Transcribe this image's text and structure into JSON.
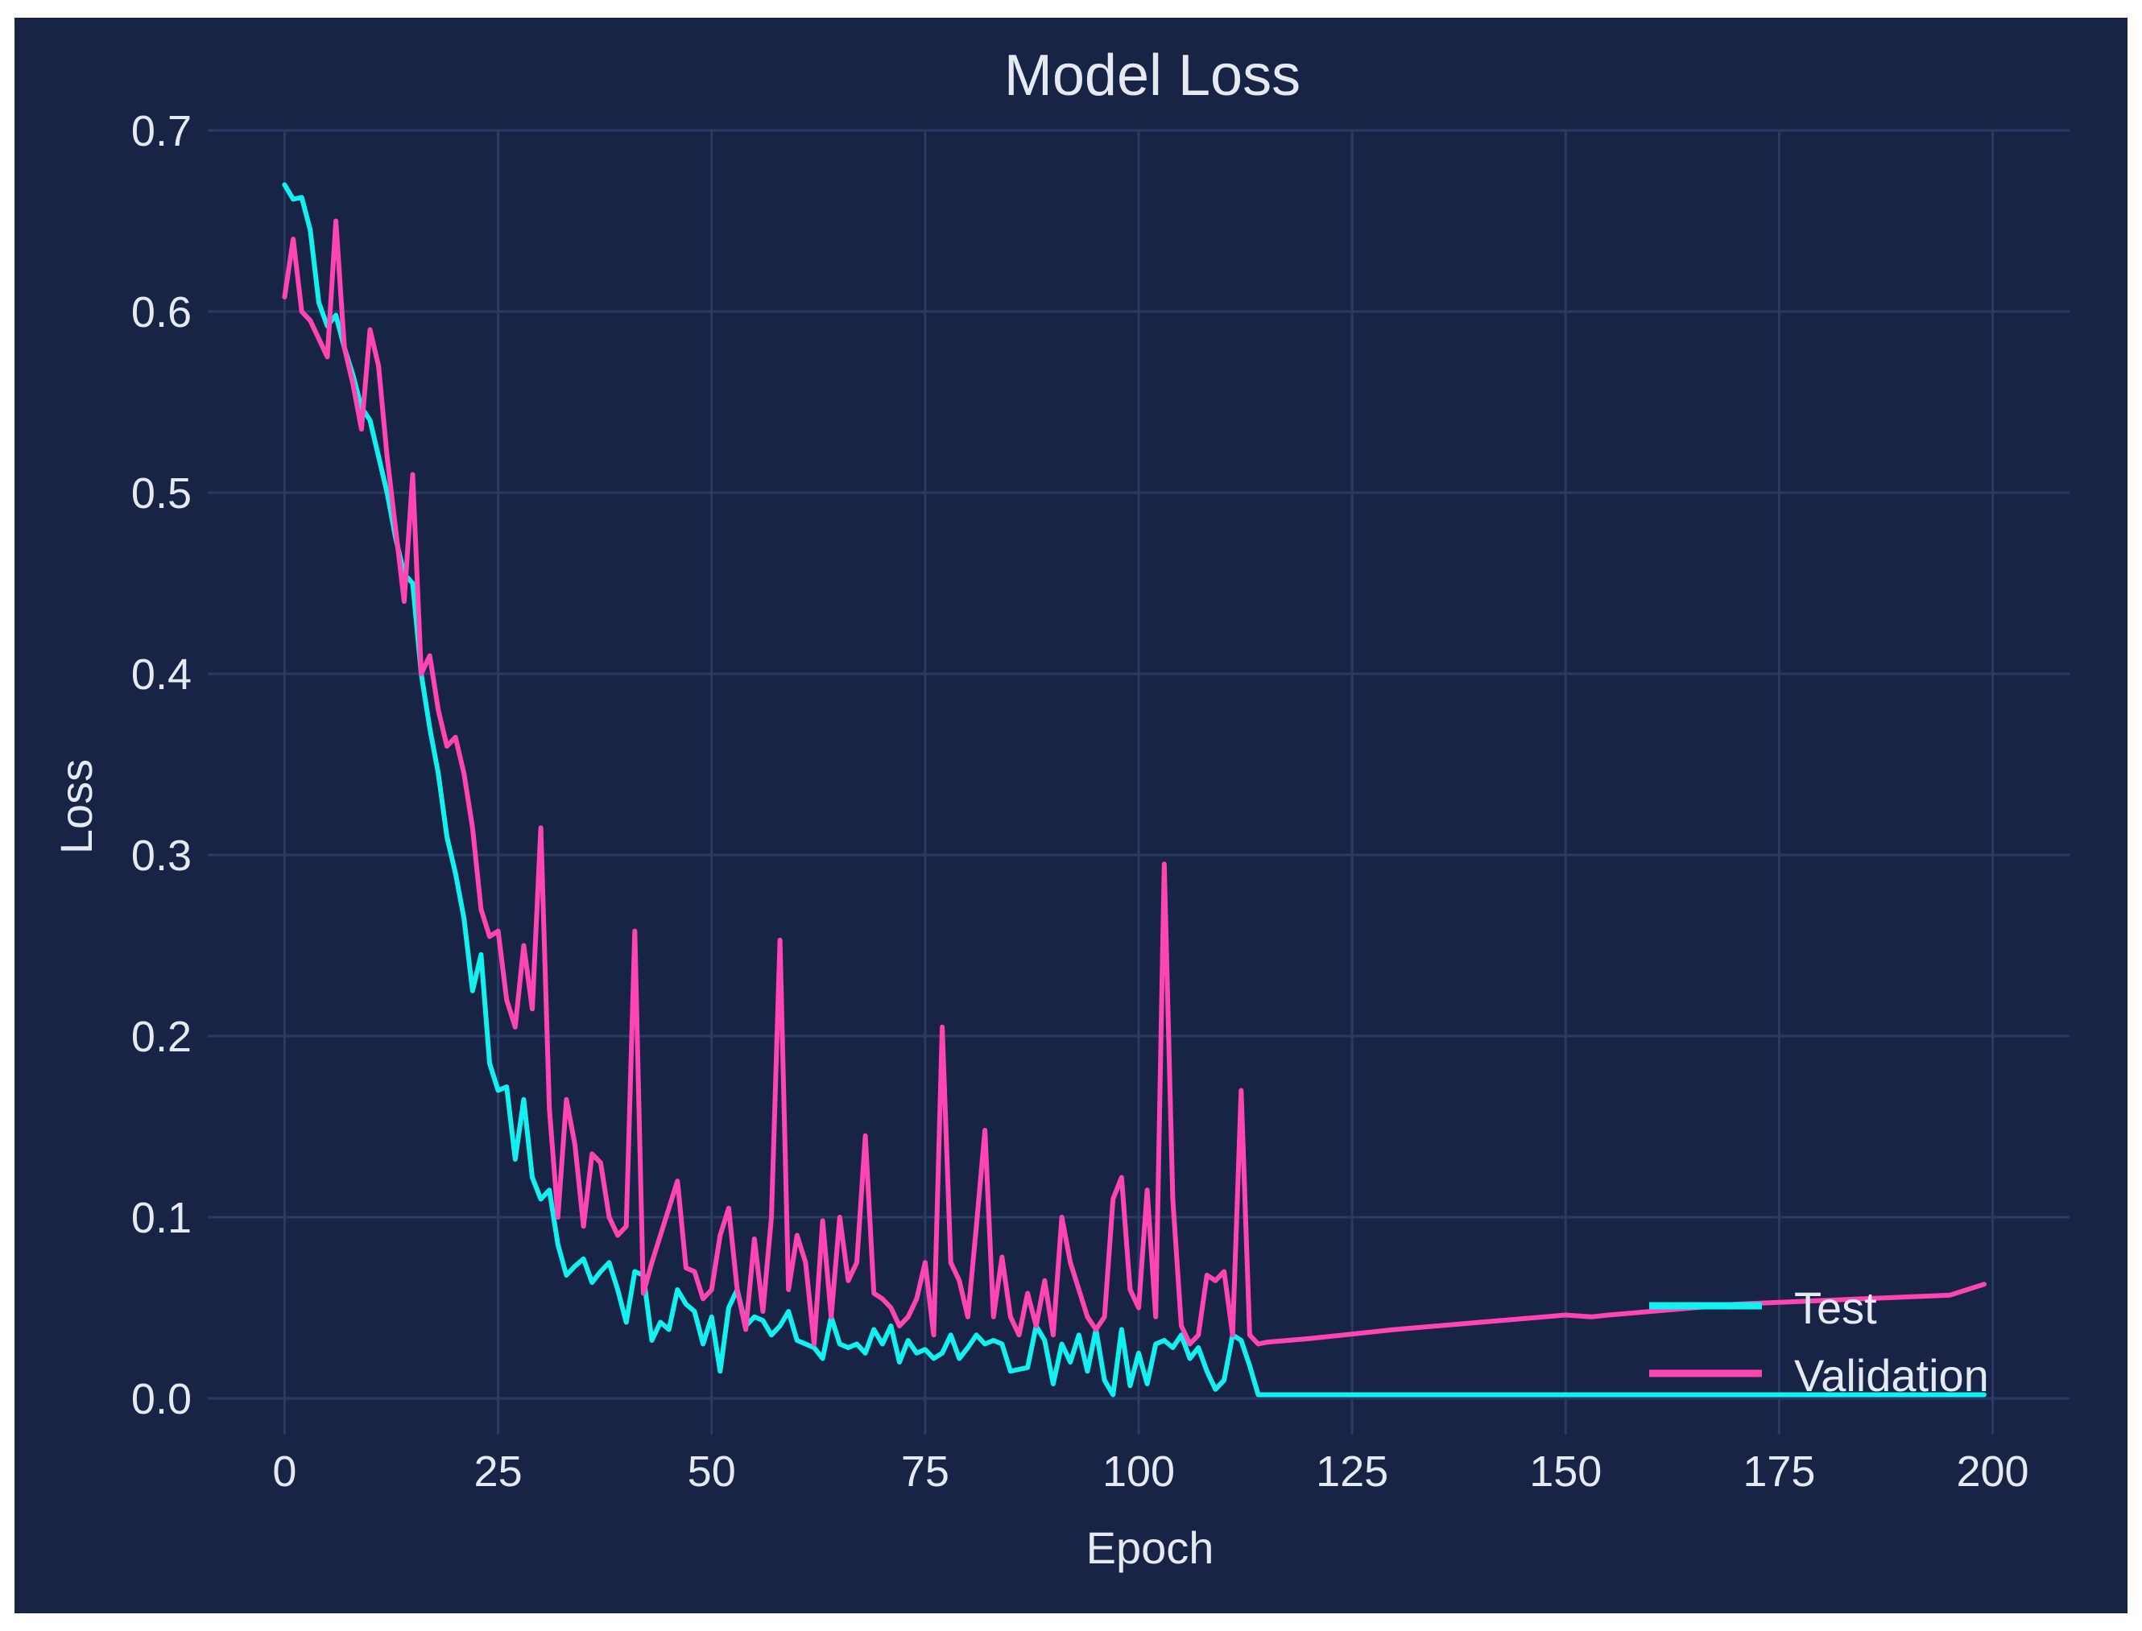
{
  "colors": {
    "background": "#172445",
    "grid": "#2a3a64",
    "text": "#e6e9f0",
    "test": "#12f0f0",
    "validation": "#ff45b4"
  },
  "chart_data": {
    "type": "line",
    "title": "Model Loss",
    "xlabel": "Epoch",
    "ylabel": "Loss",
    "xlim": [
      -9,
      209
    ],
    "ylim": [
      -0.02,
      0.7
    ],
    "grid": true,
    "legend_position": "lower-right",
    "x_ticks": [
      0,
      25,
      50,
      75,
      100,
      125,
      150,
      175,
      200
    ],
    "y_ticks": [
      0.0,
      0.1,
      0.2,
      0.3,
      0.4,
      0.5,
      0.6,
      0.7
    ],
    "x_tick_labels": [
      "0",
      "25",
      "50",
      "75",
      "100",
      "125",
      "150",
      "175",
      "200"
    ],
    "y_tick_labels": [
      "0.0",
      "0.1",
      "0.2",
      "0.3",
      "0.4",
      "0.5",
      "0.6",
      "0.7"
    ],
    "series": [
      {
        "name": "Test",
        "color": "#12f0f0",
        "x": [
          0,
          1,
          2,
          3,
          4,
          5,
          6,
          7,
          8,
          9,
          10,
          11,
          12,
          13,
          14,
          15,
          16,
          17,
          18,
          19,
          20,
          21,
          22,
          23,
          24,
          25,
          26,
          27,
          28,
          29,
          30,
          31,
          32,
          33,
          34,
          35,
          36,
          37,
          38,
          39,
          40,
          41,
          42,
          43,
          44,
          45,
          46,
          47,
          48,
          49,
          50,
          51,
          52,
          53,
          54,
          55,
          56,
          57,
          58,
          59,
          60,
          61,
          62,
          63,
          64,
          65,
          66,
          67,
          68,
          69,
          70,
          71,
          72,
          73,
          74,
          75,
          76,
          77,
          78,
          79,
          80,
          81,
          82,
          83,
          84,
          85,
          86,
          87,
          88,
          89,
          90,
          91,
          92,
          93,
          94,
          95,
          96,
          97,
          98,
          99,
          100,
          101,
          102,
          103,
          104,
          105,
          106,
          107,
          108,
          109,
          110,
          111,
          112,
          113,
          114,
          199
        ],
        "y": [
          0.67,
          0.662,
          0.663,
          0.645,
          0.605,
          0.592,
          0.598,
          0.58,
          0.565,
          0.547,
          0.54,
          0.52,
          0.5,
          0.475,
          0.455,
          0.45,
          0.4,
          0.37,
          0.345,
          0.31,
          0.29,
          0.265,
          0.225,
          0.245,
          0.185,
          0.17,
          0.172,
          0.132,
          0.165,
          0.122,
          0.11,
          0.115,
          0.085,
          0.068,
          0.073,
          0.077,
          0.064,
          0.07,
          0.075,
          0.06,
          0.042,
          0.07,
          0.068,
          0.032,
          0.042,
          0.038,
          0.06,
          0.052,
          0.048,
          0.03,
          0.045,
          0.015,
          0.05,
          0.06,
          0.04,
          0.045,
          0.043,
          0.035,
          0.04,
          0.048,
          0.032,
          0.03,
          0.028,
          0.022,
          0.045,
          0.03,
          0.028,
          0.03,
          0.025,
          0.038,
          0.03,
          0.04,
          0.02,
          0.032,
          0.025,
          0.027,
          0.022,
          0.025,
          0.035,
          0.022,
          0.028,
          0.035,
          0.03,
          0.032,
          0.03,
          0.015,
          0.016,
          0.017,
          0.04,
          0.032,
          0.008,
          0.03,
          0.02,
          0.035,
          0.015,
          0.038,
          0.01,
          0.002,
          0.038,
          0.007,
          0.025,
          0.008,
          0.03,
          0.032,
          0.028,
          0.035,
          0.022,
          0.028,
          0.015,
          0.005,
          0.01,
          0.035,
          0.032,
          0.018,
          0.002,
          0.002
        ]
      },
      {
        "name": "Validation",
        "color": "#ff45b4",
        "x": [
          0,
          1,
          2,
          3,
          4,
          5,
          6,
          7,
          8,
          9,
          10,
          11,
          12,
          13,
          14,
          15,
          16,
          17,
          18,
          19,
          20,
          21,
          22,
          23,
          24,
          25,
          26,
          27,
          28,
          29,
          30,
          31,
          32,
          33,
          34,
          35,
          36,
          37,
          38,
          39,
          40,
          41,
          42,
          43,
          44,
          45,
          46,
          47,
          48,
          49,
          50,
          51,
          52,
          53,
          54,
          55,
          56,
          57,
          58,
          59,
          60,
          61,
          62,
          63,
          64,
          65,
          66,
          67,
          68,
          69,
          70,
          71,
          72,
          73,
          74,
          75,
          76,
          77,
          78,
          79,
          80,
          81,
          82,
          83,
          84,
          85,
          86,
          87,
          88,
          89,
          90,
          91,
          92,
          93,
          94,
          95,
          96,
          97,
          98,
          99,
          100,
          101,
          102,
          103,
          104,
          105,
          106,
          107,
          108,
          109,
          110,
          111,
          112,
          113,
          114,
          115,
          120,
          130,
          140,
          150,
          153,
          155,
          160,
          170,
          180,
          190,
          195,
          197,
          199
        ],
        "y": [
          0.608,
          0.64,
          0.6,
          0.595,
          0.585,
          0.575,
          0.65,
          0.58,
          0.56,
          0.535,
          0.59,
          0.57,
          0.52,
          0.48,
          0.44,
          0.51,
          0.4,
          0.41,
          0.38,
          0.36,
          0.365,
          0.345,
          0.315,
          0.27,
          0.255,
          0.258,
          0.22,
          0.205,
          0.25,
          0.215,
          0.315,
          0.16,
          0.1,
          0.165,
          0.14,
          0.095,
          0.135,
          0.13,
          0.1,
          0.09,
          0.095,
          0.258,
          0.058,
          0.075,
          0.09,
          0.105,
          0.12,
          0.072,
          0.07,
          0.055,
          0.06,
          0.09,
          0.105,
          0.06,
          0.038,
          0.088,
          0.048,
          0.1,
          0.253,
          0.06,
          0.09,
          0.075,
          0.03,
          0.098,
          0.045,
          0.1,
          0.065,
          0.075,
          0.145,
          0.058,
          0.055,
          0.05,
          0.04,
          0.045,
          0.055,
          0.075,
          0.035,
          0.205,
          0.075,
          0.065,
          0.045,
          0.095,
          0.148,
          0.045,
          0.078,
          0.045,
          0.035,
          0.058,
          0.04,
          0.065,
          0.035,
          0.1,
          0.075,
          0.06,
          0.045,
          0.038,
          0.045,
          0.11,
          0.122,
          0.06,
          0.05,
          0.115,
          0.045,
          0.295,
          0.11,
          0.04,
          0.03,
          0.035,
          0.068,
          0.065,
          0.07,
          0.035,
          0.17,
          0.035,
          0.03,
          0.031,
          0.033,
          0.038,
          0.042,
          0.046,
          0.045,
          0.046,
          0.048,
          0.052,
          0.054,
          0.056,
          0.057,
          0.06,
          0.063
        ]
      }
    ]
  }
}
